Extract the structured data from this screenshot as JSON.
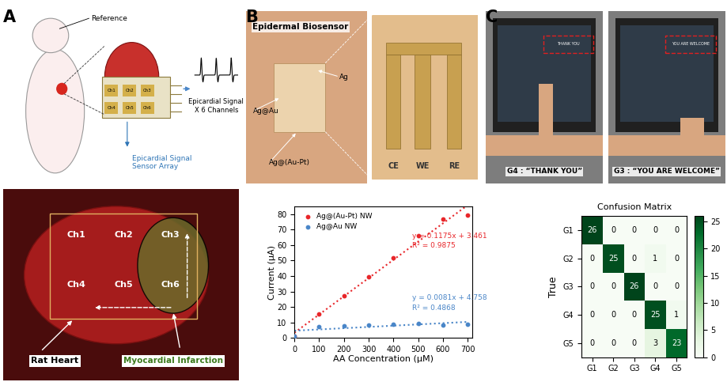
{
  "panels": {
    "A": {
      "label": "A",
      "diagram": {
        "reference": "Reference",
        "signal_lines": [
          "Epicardial Signal",
          "X 6 Channels"
        ],
        "array_lines": [
          "Epicardial Signal",
          "Sensor Array"
        ],
        "channels": [
          "Ch1",
          "Ch2",
          "Ch3",
          "Ch4",
          "Ch5",
          "Ch6"
        ]
      },
      "photo": {
        "channels": [
          "Ch1",
          "Ch2",
          "Ch3",
          "Ch4",
          "Ch5",
          "Ch6"
        ],
        "heart": "Rat Heart",
        "infarction": "Myocardial Infarction"
      }
    },
    "B": {
      "label": "B",
      "photo": {
        "title": "Epidermal Biosensor",
        "labels": [
          "Ag@Au",
          "Ag",
          "Ag@(Au-Pt)"
        ],
        "electrodes": [
          "CE",
          "WE",
          "RE"
        ]
      }
    },
    "C": {
      "label": "C",
      "photos": [
        {
          "caption": "G4 : “THANK YOU”",
          "screen": "THANK YOU"
        },
        {
          "caption": "G3 : “YOU ARE WELCOME”",
          "screen": "YOU ARE WELCOME"
        }
      ]
    }
  },
  "chart_data": [
    {
      "type": "scatter",
      "xlabel": "AA Concentration (μM)",
      "ylabel": "Current (μA)",
      "xlim": [
        0,
        720
      ],
      "ylim": [
        0,
        85
      ],
      "xticks": [
        0,
        100,
        200,
        300,
        400,
        500,
        600,
        700
      ],
      "yticks": [
        0,
        10,
        20,
        30,
        40,
        50,
        60,
        70,
        80
      ],
      "legend": "upper left",
      "series": [
        {
          "name": "Ag@(Au-Pt) NW",
          "color": "#e8262a",
          "marker": "o",
          "line_style": "dotted",
          "x": [
            0,
            100,
            200,
            300,
            400,
            500,
            600,
            700
          ],
          "values": [
            1,
            15.5,
            27.5,
            39.5,
            52,
            66,
            77,
            79.5
          ],
          "fit": {
            "slope": 0.1175,
            "intercept": 3.461
          },
          "fit_label": "y = 0.1175x + 3.461",
          "r2_label": "R² = 0.9875"
        },
        {
          "name": "Ag@Au NW",
          "color": "#4a86c8",
          "marker": "o",
          "line_style": "dotted",
          "x": [
            0,
            100,
            200,
            300,
            400,
            500,
            600,
            700
          ],
          "values": [
            1,
            7.5,
            8,
            8.5,
            9,
            9.5,
            8.5,
            9
          ],
          "fit": {
            "slope": 0.0081,
            "intercept": 4.758
          },
          "fit_label": "y = 0.0081x + 4.758",
          "r2_label": "R² = 0.4868"
        }
      ]
    },
    {
      "type": "heatmap",
      "title": "Confusion Matrix",
      "ylabel": "True",
      "x_categories": [
        "G1",
        "G2",
        "G3",
        "G4",
        "G5"
      ],
      "y_categories": [
        "G1",
        "G2",
        "G3",
        "G4",
        "G5"
      ],
      "cells": [
        [
          26,
          0,
          0,
          0,
          0
        ],
        [
          0,
          25,
          0,
          1,
          0
        ],
        [
          0,
          0,
          26,
          0,
          0
        ],
        [
          0,
          0,
          0,
          25,
          1
        ],
        [
          0,
          0,
          0,
          3,
          23
        ]
      ],
      "color": "Greens",
      "color_range": [
        0,
        26
      ],
      "color_ticks": [
        0,
        5,
        10,
        15,
        20,
        25
      ],
      "data_labels": true
    }
  ]
}
